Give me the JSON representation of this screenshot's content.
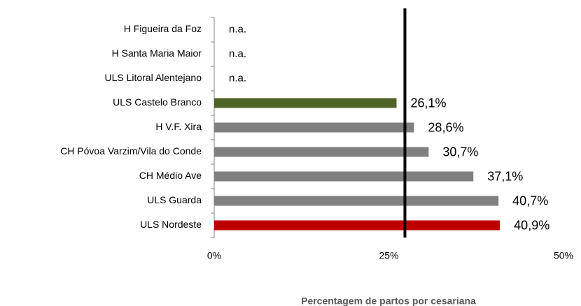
{
  "chart_data": {
    "type": "hbar",
    "x_label": "Percentagem de partos por cesariana",
    "categories": [
      "H Figueira da Foz",
      "H Santa Maria Maior",
      "ULS Litoral Alentejano",
      "ULS Castelo Branco",
      "H V.F. Xira",
      "CH Póvoa Varzim/Vila do Conde",
      "CH Médio Ave",
      "ULS Guarda",
      "ULS Nordeste"
    ],
    "values": [
      null,
      null,
      null,
      26.1,
      28.6,
      30.7,
      37.1,
      40.7,
      40.9
    ],
    "value_labels": [
      "n.a.",
      "n.a.",
      "n.a.",
      "26,1%",
      "28,6%",
      "30,7%",
      "37,1%",
      "40,7%",
      "40,9%"
    ],
    "colors": [
      null,
      null,
      null,
      "#4f6228",
      "#808080",
      "#808080",
      "#808080",
      "#808080",
      "#c00000"
    ],
    "reference_line": 27.3,
    "reference_color": "#000000",
    "xlim": [
      0,
      50
    ],
    "xticks": [
      {
        "value": 0,
        "label": "0%"
      },
      {
        "value": 25,
        "label": "25%"
      },
      {
        "value": 50,
        "label": "50%"
      }
    ]
  }
}
